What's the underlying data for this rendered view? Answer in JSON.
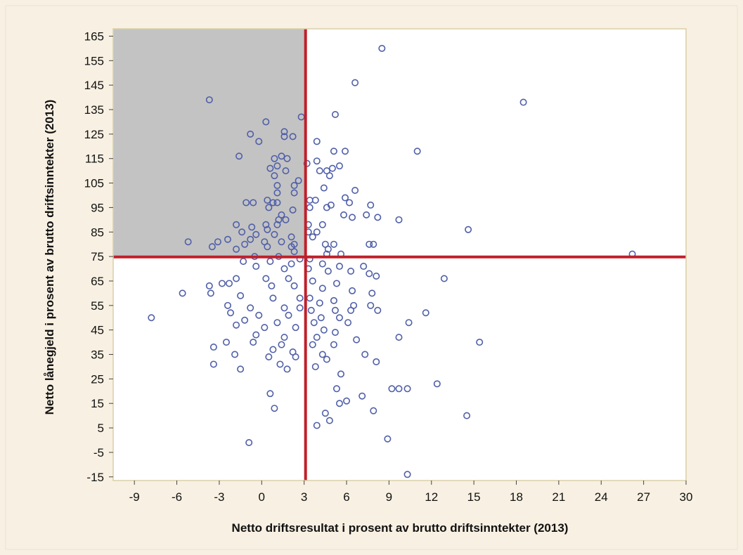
{
  "chart_data": {
    "type": "scatter",
    "title": "",
    "xlabel": "Netto driftsresultat i prosent av brutto driftsinntekter (2013)",
    "ylabel": "Netto lånegjeld i prosent av brutto driftsinntekter (2013)",
    "xlim": [
      -10.5,
      30
    ],
    "ylim": [
      -16.5,
      168
    ],
    "x_ticks": [
      -9,
      -6,
      -3,
      0,
      3,
      6,
      9,
      12,
      15,
      18,
      21,
      24,
      27,
      30
    ],
    "y_ticks": [
      -15,
      -5,
      5,
      15,
      25,
      35,
      45,
      55,
      65,
      75,
      85,
      95,
      105,
      115,
      125,
      135,
      145,
      155,
      165
    ],
    "reference_lines": {
      "x": 3.1,
      "y": 74.8
    },
    "shaded_region": {
      "x": [
        -10.5,
        3.1
      ],
      "y": [
        74.8,
        168
      ],
      "color": "#c3c3c3"
    },
    "grid": false,
    "legend": "none",
    "colors": {
      "marker": "#4f5fa8",
      "reference_line": "#c0202a",
      "plot_background": "#ffffff",
      "page_background": "#f8f0e2",
      "frame": "#d9cfa8"
    },
    "points": [
      [
        8.5,
        160
      ],
      [
        6.6,
        146
      ],
      [
        -3.7,
        139
      ],
      [
        18.5,
        138
      ],
      [
        5.2,
        133
      ],
      [
        2.8,
        132
      ],
      [
        0.3,
        130
      ],
      [
        1.6,
        126
      ],
      [
        -0.8,
        125
      ],
      [
        1.6,
        124
      ],
      [
        2.2,
        124
      ],
      [
        -0.2,
        122
      ],
      [
        3.9,
        122
      ],
      [
        5.1,
        118
      ],
      [
        5.9,
        118
      ],
      [
        11,
        118
      ],
      [
        -1.6,
        116
      ],
      [
        1.4,
        116
      ],
      [
        0.9,
        115
      ],
      [
        1.8,
        115
      ],
      [
        3.9,
        114
      ],
      [
        3.2,
        113
      ],
      [
        1.1,
        112
      ],
      [
        0.6,
        111
      ],
      [
        4.1,
        110
      ],
      [
        4.6,
        110
      ],
      [
        5,
        111
      ],
      [
        5.5,
        112
      ],
      [
        1.7,
        110
      ],
      [
        0.9,
        108
      ],
      [
        4.8,
        108
      ],
      [
        2.6,
        106
      ],
      [
        2.3,
        104
      ],
      [
        1.1,
        104
      ],
      [
        4.4,
        103
      ],
      [
        6.6,
        102
      ],
      [
        1.1,
        101
      ],
      [
        2.3,
        101
      ],
      [
        5.9,
        99
      ],
      [
        3.4,
        98
      ],
      [
        3.8,
        98
      ],
      [
        6.2,
        97
      ],
      [
        4.9,
        96
      ],
      [
        0.4,
        98
      ],
      [
        0.8,
        97
      ],
      [
        1.1,
        97
      ],
      [
        -1.1,
        97
      ],
      [
        -0.6,
        97
      ],
      [
        0.5,
        95
      ],
      [
        3.4,
        95
      ],
      [
        4.6,
        95
      ],
      [
        7.7,
        96
      ],
      [
        2.2,
        94
      ],
      [
        1.4,
        92
      ],
      [
        5.8,
        92
      ],
      [
        6.4,
        91
      ],
      [
        7.4,
        92
      ],
      [
        8.2,
        91
      ],
      [
        9.7,
        90
      ],
      [
        1.2,
        90
      ],
      [
        1.7,
        90
      ],
      [
        0.3,
        88
      ],
      [
        1.1,
        88
      ],
      [
        -0.7,
        87
      ],
      [
        -1.8,
        88
      ],
      [
        3.3,
        88
      ],
      [
        4.3,
        88
      ],
      [
        14.6,
        86
      ],
      [
        0.4,
        86
      ],
      [
        3.3,
        85
      ],
      [
        3.9,
        85
      ],
      [
        -1.4,
        85
      ],
      [
        -0.4,
        84
      ],
      [
        0.9,
        84
      ],
      [
        2.1,
        83
      ],
      [
        3.6,
        83
      ],
      [
        -2.4,
        82
      ],
      [
        -0.8,
        82
      ],
      [
        0.2,
        81
      ],
      [
        1.4,
        81
      ],
      [
        2.3,
        80
      ],
      [
        4.5,
        80
      ],
      [
        5.1,
        80
      ],
      [
        -5.2,
        81
      ],
      [
        -3.1,
        81
      ],
      [
        -1.2,
        80
      ],
      [
        0.4,
        79
      ],
      [
        2.1,
        79
      ],
      [
        4.7,
        78
      ],
      [
        7.6,
        80
      ],
      [
        7.9,
        80
      ],
      [
        -3.5,
        79
      ],
      [
        -1.8,
        78
      ],
      [
        2.3,
        77
      ],
      [
        4.6,
        76
      ],
      [
        5.6,
        76
      ],
      [
        26.2,
        76
      ],
      [
        -0.5,
        75
      ],
      [
        1.2,
        75
      ],
      [
        2.7,
        74
      ],
      [
        3.4,
        74
      ],
      [
        -1.3,
        73
      ],
      [
        0.6,
        73
      ],
      [
        2.1,
        72
      ],
      [
        4.3,
        72
      ],
      [
        5.5,
        71
      ],
      [
        7.2,
        71
      ],
      [
        -0.4,
        71
      ],
      [
        1.6,
        70
      ],
      [
        3.3,
        70
      ],
      [
        4.7,
        69
      ],
      [
        6.3,
        69
      ],
      [
        7.6,
        68
      ],
      [
        8.1,
        67
      ],
      [
        12.9,
        66
      ],
      [
        -1.8,
        66
      ],
      [
        0.3,
        66
      ],
      [
        1.9,
        66
      ],
      [
        3.6,
        65
      ],
      [
        5.3,
        64
      ],
      [
        -2.8,
        64
      ],
      [
        -3.7,
        63
      ],
      [
        -2.3,
        64
      ],
      [
        0.7,
        63
      ],
      [
        2.3,
        63
      ],
      [
        4.3,
        62
      ],
      [
        6.4,
        61
      ],
      [
        7.8,
        60
      ],
      [
        -3.6,
        60
      ],
      [
        -5.6,
        60
      ],
      [
        -1.5,
        59
      ],
      [
        0.8,
        58
      ],
      [
        2.7,
        58
      ],
      [
        3.4,
        58
      ],
      [
        5.1,
        57
      ],
      [
        4.1,
        56
      ],
      [
        6.5,
        55
      ],
      [
        7.7,
        55
      ],
      [
        -2.4,
        55
      ],
      [
        -0.8,
        54
      ],
      [
        1.6,
        54
      ],
      [
        2.7,
        54
      ],
      [
        3.5,
        53
      ],
      [
        5.2,
        53
      ],
      [
        6.3,
        53
      ],
      [
        8.2,
        53
      ],
      [
        11.6,
        52
      ],
      [
        -2.2,
        52
      ],
      [
        -0.2,
        51
      ],
      [
        1.9,
        51
      ],
      [
        4.2,
        50
      ],
      [
        5.5,
        50
      ],
      [
        -7.8,
        50
      ],
      [
        -1.2,
        49
      ],
      [
        1.1,
        48
      ],
      [
        3.7,
        48
      ],
      [
        6.1,
        48
      ],
      [
        10.4,
        48
      ],
      [
        -1.8,
        47
      ],
      [
        0.2,
        46
      ],
      [
        2.4,
        46
      ],
      [
        4.4,
        45
      ],
      [
        5.2,
        44
      ],
      [
        -0.4,
        43
      ],
      [
        1.6,
        42
      ],
      [
        3.9,
        42
      ],
      [
        6.7,
        41
      ],
      [
        9.7,
        42
      ],
      [
        15.4,
        40
      ],
      [
        -2.5,
        40
      ],
      [
        -0.6,
        40
      ],
      [
        1.4,
        39
      ],
      [
        3.6,
        39
      ],
      [
        5.1,
        39
      ],
      [
        -3.4,
        38
      ],
      [
        0.8,
        37
      ],
      [
        2.2,
        36
      ],
      [
        4.3,
        35
      ],
      [
        7.3,
        35
      ],
      [
        -1.9,
        35
      ],
      [
        0.5,
        34
      ],
      [
        2.4,
        34
      ],
      [
        4.6,
        33
      ],
      [
        8.1,
        32
      ],
      [
        -3.4,
        31
      ],
      [
        1.3,
        31
      ],
      [
        3.8,
        30
      ],
      [
        -1.5,
        29
      ],
      [
        1.8,
        29
      ],
      [
        5.6,
        27
      ],
      [
        9.2,
        21
      ],
      [
        9.7,
        21
      ],
      [
        10.3,
        21
      ],
      [
        12.4,
        23
      ],
      [
        5.3,
        21
      ],
      [
        0.6,
        19
      ],
      [
        7.1,
        18
      ],
      [
        6,
        16
      ],
      [
        5.5,
        15
      ],
      [
        0.9,
        13
      ],
      [
        7.9,
        12
      ],
      [
        4.5,
        11
      ],
      [
        4.8,
        8
      ],
      [
        14.5,
        10
      ],
      [
        3.9,
        6
      ],
      [
        -0.9,
        -1
      ],
      [
        8.9,
        0.5
      ],
      [
        10.3,
        -14
      ]
    ]
  }
}
